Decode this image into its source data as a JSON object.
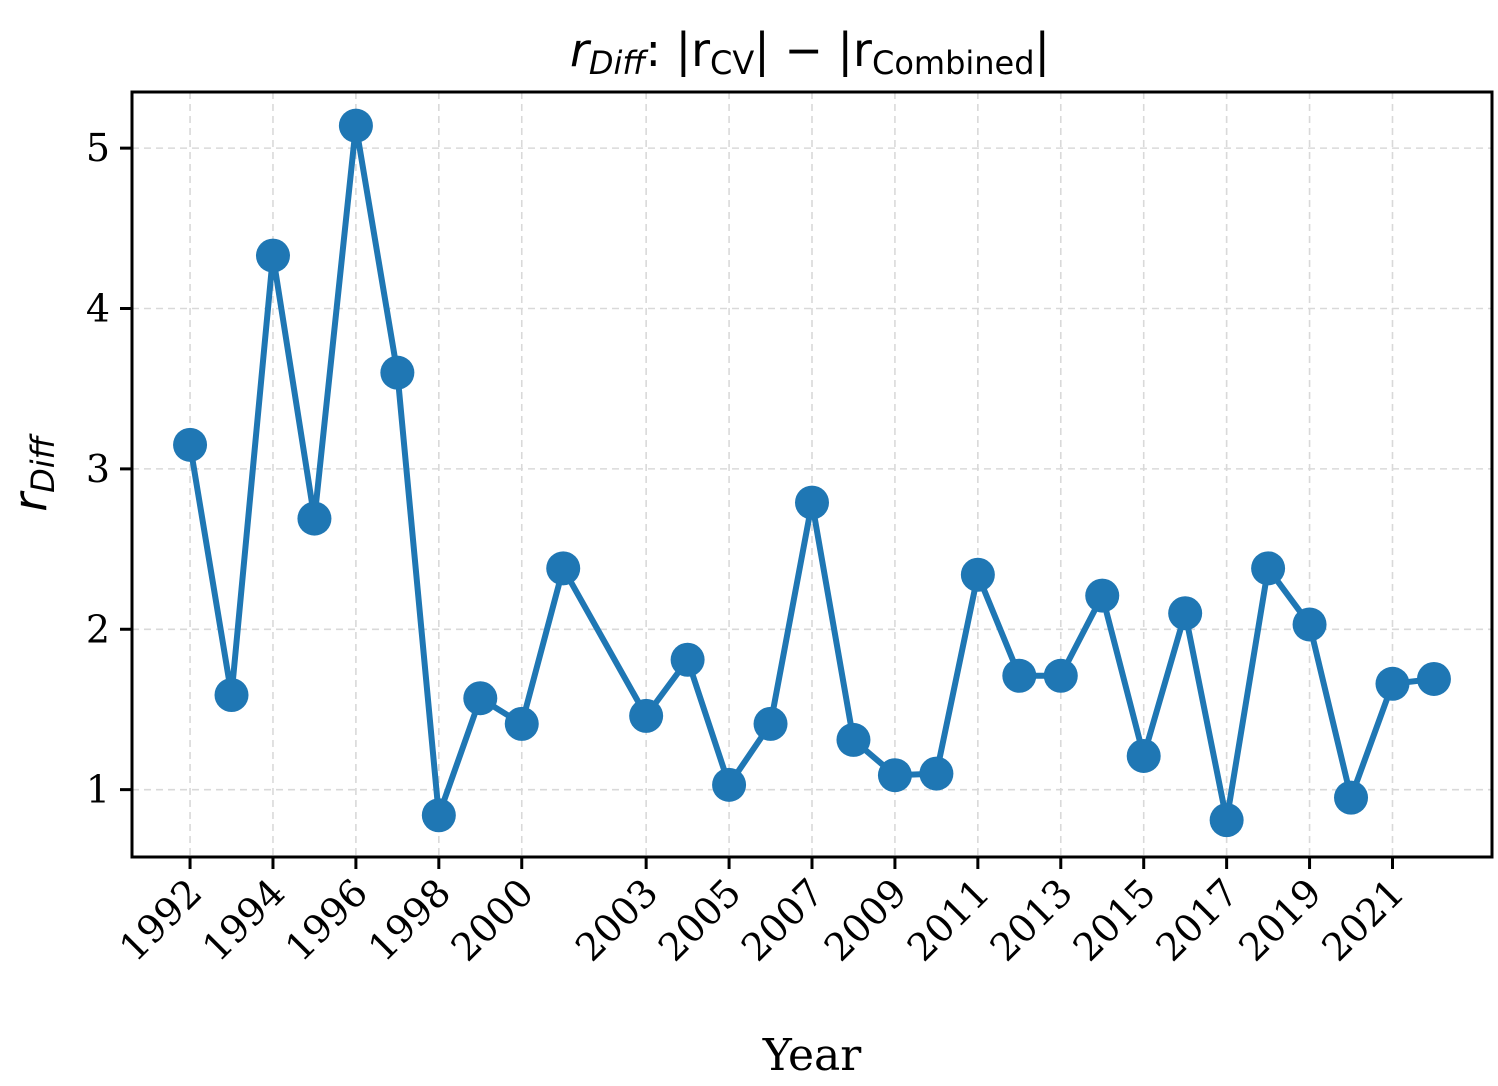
{
  "chart_data": {
    "type": "line",
    "title": {
      "main": "r",
      "main_sub": "Diff",
      "colon": ": |r",
      "sub_a": "CV",
      "mid": "| − |r",
      "sub_b": "Combined",
      "end": "|"
    },
    "xlabel": "Year",
    "ylabel": {
      "main": "r",
      "sub": "Diff"
    },
    "xlim": [
      1990.6,
      2023.4
    ],
    "ylim": [
      0.58,
      5.35
    ],
    "xticks": [
      1992,
      1994,
      1996,
      1998,
      2000,
      2003,
      2005,
      2007,
      2009,
      2011,
      2013,
      2015,
      2017,
      2019,
      2021
    ],
    "yticks": [
      1,
      2,
      3,
      4,
      5
    ],
    "grid": true,
    "color": "#1f77b4",
    "series": [
      {
        "x": [
          1992,
          1993,
          1994,
          1995,
          1996,
          1997,
          1998,
          1999,
          2000,
          2001,
          2003,
          2004,
          2005,
          2006,
          2007,
          2008,
          2009,
          2010,
          2011,
          2012,
          2013,
          2014,
          2015,
          2016,
          2017,
          2018,
          2019,
          2020,
          2021,
          2022
        ],
        "values": [
          3.15,
          1.59,
          4.33,
          2.69,
          5.14,
          3.6,
          0.84,
          1.57,
          1.41,
          2.38,
          1.46,
          1.81,
          1.03,
          1.41,
          2.79,
          1.31,
          1.09,
          1.1,
          2.34,
          1.71,
          1.71,
          2.21,
          1.21,
          2.1,
          0.81,
          2.38,
          2.03,
          0.95,
          1.66,
          1.69
        ]
      }
    ]
  }
}
